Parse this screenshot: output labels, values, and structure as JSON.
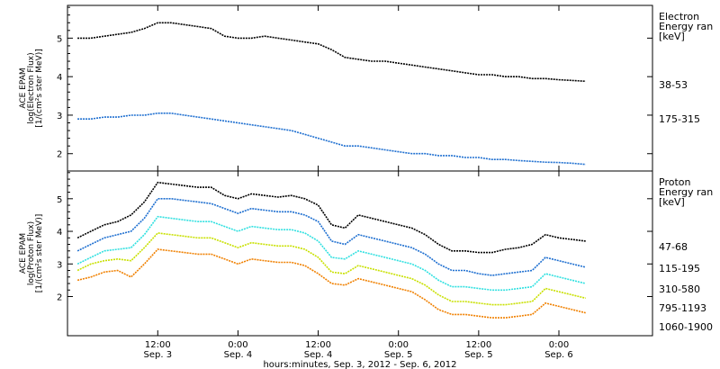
{
  "chart_data": [
    {
      "type": "line",
      "panel": "electron",
      "ylabel": [
        "ACE EPAM",
        "log(Electron Flux)",
        "[1/(cm²s ster MeV)]"
      ],
      "ylim": [
        1.55,
        5.85
      ],
      "yticks": [
        "2",
        "3",
        "4",
        "5"
      ],
      "legend_title": [
        "Electron",
        "Energy ran",
        "[keV]"
      ],
      "legend_placement": "right",
      "series": [
        {
          "name": "38-53",
          "color": "#000000",
          "x": [
            0,
            2,
            4,
            6,
            8,
            10,
            12,
            14,
            16,
            18,
            20,
            22,
            24,
            26,
            28,
            30,
            32,
            34,
            36,
            38,
            40,
            42,
            44,
            46,
            48,
            50,
            52,
            54,
            56,
            58,
            60,
            62,
            64,
            66,
            68,
            70,
            72,
            74,
            76
          ],
          "y": [
            5.0,
            5.0,
            5.05,
            5.1,
            5.15,
            5.25,
            5.4,
            5.4,
            5.35,
            5.3,
            5.25,
            5.05,
            5.0,
            5.0,
            5.05,
            5.0,
            4.95,
            4.9,
            4.85,
            4.7,
            4.5,
            4.45,
            4.4,
            4.4,
            4.35,
            4.3,
            4.25,
            4.2,
            4.15,
            4.1,
            4.05,
            4.05,
            4.0,
            4.0,
            3.95,
            3.95,
            3.92,
            3.9,
            3.88
          ]
        },
        {
          "name": "175-315",
          "color": "#1e6fd0",
          "x": [
            0,
            2,
            4,
            6,
            8,
            10,
            12,
            14,
            16,
            18,
            20,
            22,
            24,
            26,
            28,
            30,
            32,
            34,
            36,
            38,
            40,
            42,
            44,
            46,
            48,
            50,
            52,
            54,
            56,
            58,
            60,
            62,
            64,
            66,
            68,
            70,
            72,
            74,
            76
          ],
          "y": [
            2.9,
            2.9,
            2.95,
            2.95,
            3.0,
            3.0,
            3.05,
            3.05,
            3.0,
            2.95,
            2.9,
            2.85,
            2.8,
            2.75,
            2.7,
            2.65,
            2.6,
            2.5,
            2.4,
            2.3,
            2.2,
            2.2,
            2.15,
            2.1,
            2.05,
            2.0,
            2.0,
            1.95,
            1.95,
            1.9,
            1.9,
            1.85,
            1.85,
            1.82,
            1.8,
            1.78,
            1.77,
            1.75,
            1.72
          ]
        }
      ]
    },
    {
      "type": "line",
      "panel": "proton",
      "ylabel": [
        "ACE EPAM",
        "log(Proton Flux)",
        "[1/(cm²s ster MeV)]"
      ],
      "ylim": [
        0.8,
        5.85
      ],
      "yticks": [
        "2",
        "3",
        "4",
        "5"
      ],
      "legend_title": [
        "Proton",
        "Energy ran",
        "[keV]"
      ],
      "legend_placement": "right",
      "series": [
        {
          "name": "47-68",
          "color": "#000000",
          "x": [
            0,
            2,
            4,
            6,
            8,
            10,
            12,
            14,
            16,
            18,
            20,
            22,
            24,
            26,
            28,
            30,
            32,
            34,
            36,
            38,
            40,
            42,
            44,
            46,
            48,
            50,
            52,
            54,
            56,
            58,
            60,
            62,
            64,
            66,
            68,
            70,
            72,
            74,
            76
          ],
          "y": [
            3.8,
            4.0,
            4.2,
            4.3,
            4.5,
            4.9,
            5.5,
            5.45,
            5.4,
            5.35,
            5.35,
            5.1,
            5.0,
            5.15,
            5.1,
            5.05,
            5.1,
            5.0,
            4.8,
            4.2,
            4.1,
            4.5,
            4.4,
            4.3,
            4.2,
            4.1,
            3.9,
            3.6,
            3.4,
            3.4,
            3.35,
            3.35,
            3.45,
            3.5,
            3.6,
            3.9,
            3.8,
            3.75,
            3.7
          ]
        },
        {
          "name": "115-195",
          "color": "#1e6fd0",
          "x": [
            0,
            2,
            4,
            6,
            8,
            10,
            12,
            14,
            16,
            18,
            20,
            22,
            24,
            26,
            28,
            30,
            32,
            34,
            36,
            38,
            40,
            42,
            44,
            46,
            48,
            50,
            52,
            54,
            56,
            58,
            60,
            62,
            64,
            66,
            68,
            70,
            72,
            74,
            76
          ],
          "y": [
            3.4,
            3.6,
            3.8,
            3.9,
            4.0,
            4.4,
            5.0,
            5.0,
            4.95,
            4.9,
            4.85,
            4.7,
            4.55,
            4.7,
            4.65,
            4.6,
            4.6,
            4.5,
            4.3,
            3.7,
            3.6,
            3.9,
            3.8,
            3.7,
            3.6,
            3.5,
            3.3,
            3.0,
            2.8,
            2.8,
            2.7,
            2.65,
            2.7,
            2.75,
            2.8,
            3.2,
            3.1,
            3.0,
            2.9
          ]
        },
        {
          "name": "310-580",
          "color": "#30e0e0",
          "x": [
            0,
            2,
            4,
            6,
            8,
            10,
            12,
            14,
            16,
            18,
            20,
            22,
            24,
            26,
            28,
            30,
            32,
            34,
            36,
            38,
            40,
            42,
            44,
            46,
            48,
            50,
            52,
            54,
            56,
            58,
            60,
            62,
            64,
            66,
            68,
            70,
            72,
            74,
            76
          ],
          "y": [
            3.0,
            3.2,
            3.4,
            3.45,
            3.5,
            3.9,
            4.45,
            4.4,
            4.35,
            4.3,
            4.3,
            4.15,
            4.0,
            4.15,
            4.1,
            4.05,
            4.05,
            3.95,
            3.7,
            3.2,
            3.15,
            3.4,
            3.3,
            3.2,
            3.1,
            3.0,
            2.8,
            2.5,
            2.3,
            2.3,
            2.25,
            2.2,
            2.2,
            2.25,
            2.3,
            2.7,
            2.6,
            2.5,
            2.4
          ]
        },
        {
          "name": "795-1193",
          "color": "#c8e000",
          "x": [
            0,
            2,
            4,
            6,
            8,
            10,
            12,
            14,
            16,
            18,
            20,
            22,
            24,
            26,
            28,
            30,
            32,
            34,
            36,
            38,
            40,
            42,
            44,
            46,
            48,
            50,
            52,
            54,
            56,
            58,
            60,
            62,
            64,
            66,
            68,
            70,
            72,
            74,
            76
          ],
          "y": [
            2.8,
            3.0,
            3.1,
            3.15,
            3.1,
            3.5,
            3.95,
            3.9,
            3.85,
            3.8,
            3.8,
            3.65,
            3.5,
            3.65,
            3.6,
            3.55,
            3.55,
            3.45,
            3.2,
            2.75,
            2.7,
            2.95,
            2.85,
            2.75,
            2.65,
            2.55,
            2.35,
            2.05,
            1.85,
            1.85,
            1.8,
            1.75,
            1.75,
            1.8,
            1.85,
            2.25,
            2.15,
            2.05,
            1.95
          ]
        },
        {
          "name": "1060-1900",
          "color": "#f08000",
          "x": [
            0,
            2,
            4,
            6,
            8,
            10,
            12,
            14,
            16,
            18,
            20,
            22,
            24,
            26,
            28,
            30,
            32,
            34,
            36,
            38,
            40,
            42,
            44,
            46,
            48,
            50,
            52,
            54,
            56,
            58,
            60,
            62,
            64,
            66,
            68,
            70,
            72,
            74,
            76
          ],
          "y": [
            2.5,
            2.6,
            2.75,
            2.8,
            2.6,
            3.0,
            3.45,
            3.4,
            3.35,
            3.3,
            3.3,
            3.15,
            3.0,
            3.15,
            3.1,
            3.05,
            3.05,
            2.95,
            2.7,
            2.4,
            2.35,
            2.55,
            2.45,
            2.35,
            2.25,
            2.15,
            1.9,
            1.6,
            1.45,
            1.45,
            1.4,
            1.35,
            1.35,
            1.4,
            1.45,
            1.8,
            1.7,
            1.6,
            1.5
          ]
        }
      ]
    }
  ],
  "x_axis": {
    "xlim": [
      -1.5,
      86
    ],
    "ticks": [
      {
        "x": 12,
        "time": "12:00",
        "date": "Sep. 3"
      },
      {
        "x": 24,
        "time": "0:00",
        "date": "Sep. 4"
      },
      {
        "x": 36,
        "time": "12:00",
        "date": "Sep. 4"
      },
      {
        "x": 48,
        "time": "0:00",
        "date": "Sep. 5"
      },
      {
        "x": 60,
        "time": "12:00",
        "date": "Sep. 5"
      },
      {
        "x": 72,
        "time": "0:00",
        "date": "Sep. 6"
      }
    ],
    "xlabel": "hours:minutes, Sep.  3, 2012 - Sep.  6, 2012"
  }
}
